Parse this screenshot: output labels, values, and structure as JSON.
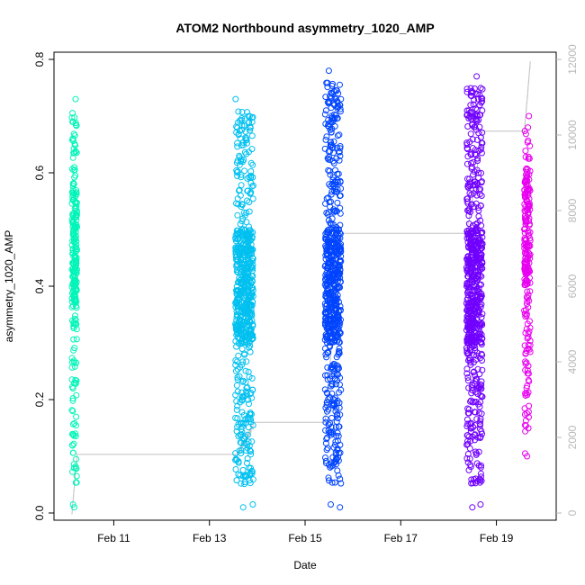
{
  "chart_data": {
    "type": "scatter",
    "title": "ATOM2 Northbound asymmetry_1020_AMP",
    "xlabel": "Date",
    "ylabel": "asymmetry_1020_AMP",
    "x_ticks": [
      "Feb 11",
      "Feb 13",
      "Feb 15",
      "Feb 17",
      "Feb 19"
    ],
    "y_ticks": [
      "0.0",
      "0.2",
      "0.4",
      "0.6",
      "0.8"
    ],
    "y2_ticks": [
      "0",
      "2000",
      "4000",
      "6000",
      "8000",
      "10000",
      "12000"
    ],
    "ylim": [
      0,
      0.8
    ],
    "y2lim": [
      0,
      12000
    ],
    "xlim": [
      "2025-02-09 18:00",
      "2025-02-20 06:00"
    ],
    "grid": false,
    "secondary_axis_color": "#b8b8b8",
    "cumulative_count_line_color": "#c0c0c0",
    "series": [
      {
        "color": "#00f5b8",
        "x_range": [
          "2025-02-10 03:00",
          "2025-02-10 05:30"
        ],
        "y_range": [
          0.01,
          0.73
        ],
        "y_center": 0.47,
        "cumulative_count": [
          0,
          1550
        ]
      },
      {
        "color": "#00c0f0",
        "x_range": [
          "2025-02-13 13:00",
          "2025-02-13 22:00"
        ],
        "y_range": [
          0.01,
          0.73
        ],
        "y_center": 0.4,
        "cumulative_count": [
          1550,
          2400
        ]
      },
      {
        "color": "#0044ff",
        "x_range": [
          "2025-02-15 10:00",
          "2025-02-15 18:00"
        ],
        "y_range": [
          0.01,
          0.78
        ],
        "y_center": 0.4,
        "cumulative_count": [
          2400,
          7400
        ]
      },
      {
        "color": "#7000ff",
        "x_range": [
          "2025-02-18 09:00",
          "2025-02-18 17:00"
        ],
        "y_range": [
          0.01,
          0.77
        ],
        "y_center": 0.4,
        "cumulative_count": [
          7400,
          10100
        ]
      },
      {
        "color": "#e800f0",
        "x_range": [
          "2025-02-19 14:00",
          "2025-02-19 17:00"
        ],
        "y_range": [
          0.1,
          0.7
        ],
        "y_center": 0.5,
        "cumulative_count": [
          10100,
          11950
        ]
      }
    ]
  }
}
